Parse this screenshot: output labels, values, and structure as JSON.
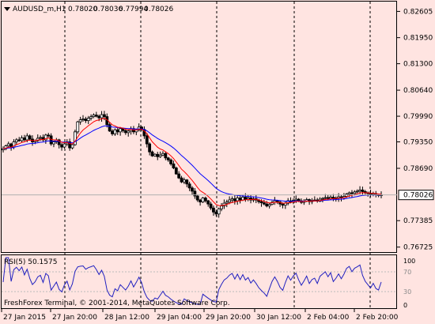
{
  "header": {
    "symbol": "AUDUSD_m,H1",
    "open": "0.78020",
    "high": "0.78036",
    "low": "0.77994",
    "close": "0.78026"
  },
  "indicator": {
    "label": "RSI(5) 50.1575",
    "levels": [
      "100",
      "70",
      "30",
      "0"
    ]
  },
  "footer": {
    "copyright": "FreshForex Terminal, © 2001-2014, MetaQuotes Software Corp."
  },
  "colors": {
    "background": "#ffe4e1",
    "ma_fast": "#ff0000",
    "ma_slow": "#0000ff",
    "rsi_line": "#2020c0",
    "price_tag_bg": "#ffffff"
  },
  "chart_data": [
    {
      "type": "candlestick",
      "symbol": "AUDUSD_m",
      "timeframe": "H1",
      "price_axis_ticks": [
        0.82605,
        0.8195,
        0.813,
        0.8064,
        0.7999,
        0.7935,
        0.7869,
        0.78026,
        0.77385,
        0.76725
      ],
      "current_price": 0.78026,
      "x_tick_labels": [
        "27 Jan 2015",
        "27 Jan 20:00",
        "28 Jan 12:00",
        "29 Jan 04:00",
        "29 Jan 20:00",
        "30 Jan 12:00",
        "2 Feb 04:00",
        "2 Feb 20:00"
      ],
      "ylim": [
        0.7662,
        0.8285
      ],
      "grid": false,
      "series": [
        {
          "name": "close",
          "values": [
            0.7918,
            0.7925,
            0.793,
            0.7922,
            0.7935,
            0.794,
            0.7938,
            0.7945,
            0.794,
            0.795,
            0.7942,
            0.7935,
            0.7938,
            0.7944,
            0.7946,
            0.794,
            0.7952,
            0.795,
            0.793,
            0.7935,
            0.794,
            0.7928,
            0.7922,
            0.793,
            0.7935,
            0.792,
            0.7928,
            0.796,
            0.7985,
            0.799,
            0.7992,
            0.7988,
            0.7994,
            0.7998,
            0.8002,
            0.7999,
            0.7995,
            0.8003,
            0.7998,
            0.7978,
            0.7962,
            0.7955,
            0.7965,
            0.796,
            0.7968,
            0.7963,
            0.7958,
            0.7962,
            0.7968,
            0.796,
            0.7965,
            0.7972,
            0.7966,
            0.795,
            0.793,
            0.791,
            0.79,
            0.7904,
            0.7898,
            0.7902,
            0.7906,
            0.7895,
            0.789,
            0.788,
            0.787,
            0.7855,
            0.7845,
            0.7835,
            0.784,
            0.783,
            0.782,
            0.7812,
            0.78,
            0.779,
            0.7785,
            0.7795,
            0.7788,
            0.778,
            0.777,
            0.776,
            0.7755,
            0.7768,
            0.7775,
            0.7782,
            0.7785,
            0.779,
            0.7793,
            0.7788,
            0.7795,
            0.779,
            0.7797,
            0.7792,
            0.7795,
            0.779,
            0.7793,
            0.779,
            0.7786,
            0.7783,
            0.778,
            0.7775,
            0.7779,
            0.7784,
            0.7788,
            0.7785,
            0.778,
            0.7777,
            0.7782,
            0.7788,
            0.7785,
            0.7789,
            0.7792,
            0.7788,
            0.7784,
            0.7787,
            0.7791,
            0.7786,
            0.7789,
            0.779,
            0.7787,
            0.7792,
            0.7794,
            0.7796,
            0.7794,
            0.7797,
            0.7793,
            0.7795,
            0.7798,
            0.7796,
            0.7799,
            0.7805,
            0.7808,
            0.7806,
            0.781,
            0.7812,
            0.7815,
            0.7811,
            0.7808,
            0.7806,
            0.7804,
            0.7806,
            0.7803,
            0.7802,
            0.7803
          ]
        },
        {
          "name": "MA fast"
        },
        {
          "name": "MA slow"
        },
        {
          "name": "RSI(5)",
          "current": 50.1575
        }
      ]
    }
  ]
}
